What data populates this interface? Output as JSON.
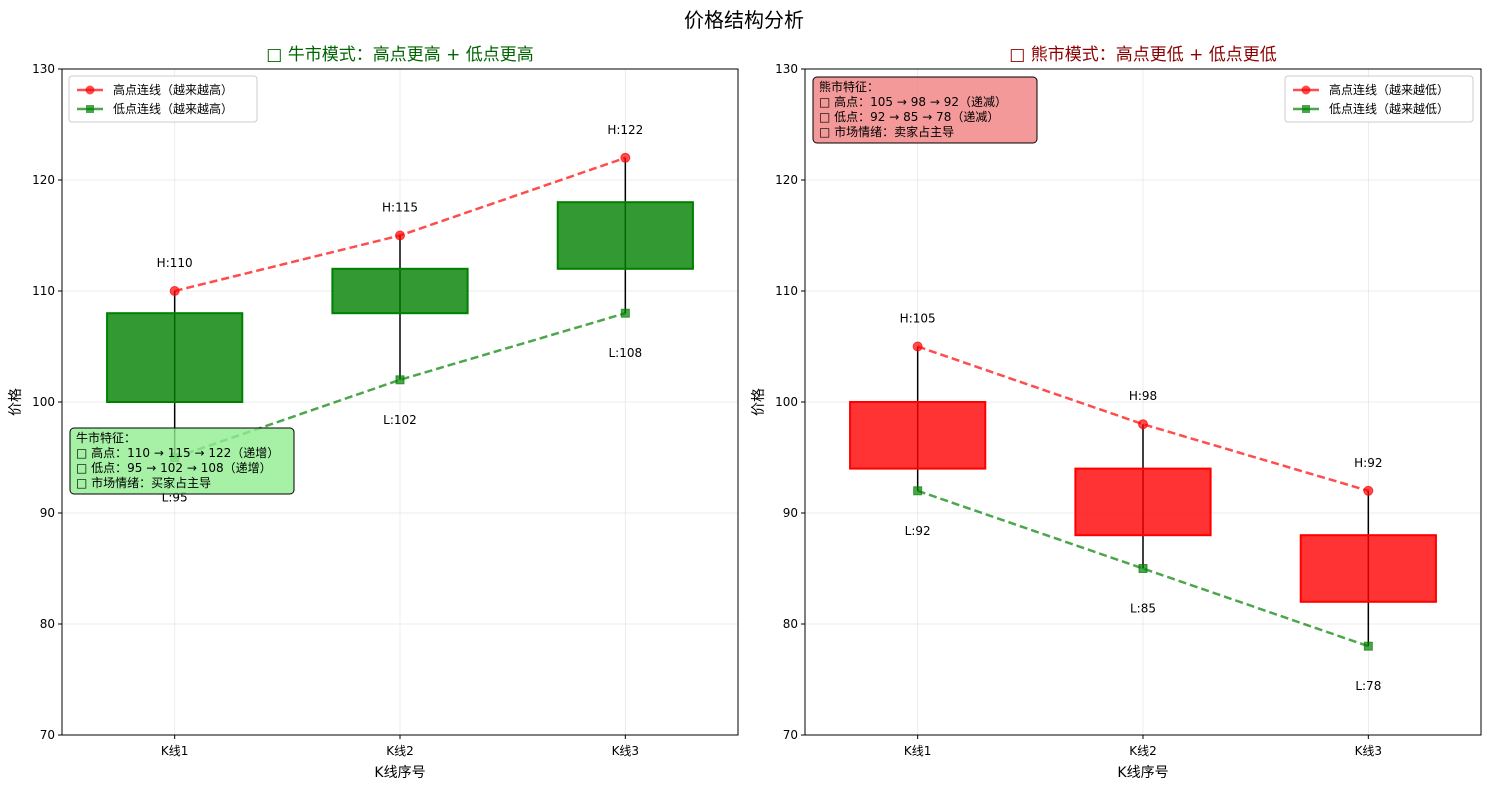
{
  "suptitle": "价格结构分析",
  "chart_data": [
    {
      "type": "candlestick",
      "title": "□ 牛市模式：高点更高 + 低点更高",
      "title_color": "#006400",
      "xlabel": "K线序号",
      "ylabel": "价格",
      "ylim": [
        70,
        130
      ],
      "yticks": [
        70,
        80,
        90,
        100,
        110,
        120,
        130
      ],
      "grid": true,
      "categories": [
        "K线1",
        "K线2",
        "K线3"
      ],
      "candles": [
        {
          "open": 100,
          "close": 108,
          "high": 110,
          "low": 95
        },
        {
          "open": 108,
          "close": 112,
          "high": 115,
          "low": 102
        },
        {
          "open": 112,
          "close": 118,
          "high": 122,
          "low": 108
        }
      ],
      "candle_color": "#008000",
      "high_labels": [
        "H:110",
        "H:115",
        "H:122"
      ],
      "low_labels": [
        "L:95",
        "L:102",
        "L:108"
      ],
      "series": [
        {
          "name": "高点连线（越来越高）",
          "values": [
            110,
            115,
            122
          ],
          "color": "#ff0000",
          "marker": "circle"
        },
        {
          "name": "低点连线（越来越高）",
          "values": [
            95,
            102,
            108
          ],
          "color": "#008000",
          "marker": "square"
        }
      ],
      "legend_position": "upper-left",
      "info_box": {
        "position": "lower-left",
        "bg": "#90ee90",
        "lines": [
          "牛市特征：",
          "□ 高点：110 → 115 → 122（递增）",
          "□ 低点：95 → 102 → 108（递增）",
          "□ 市场情绪：买家占主导"
        ]
      }
    },
    {
      "type": "candlestick",
      "title": "□ 熊市模式：高点更低 + 低点更低",
      "title_color": "#8b0000",
      "xlabel": "K线序号",
      "ylabel": "价格",
      "ylim": [
        70,
        130
      ],
      "yticks": [
        70,
        80,
        90,
        100,
        110,
        120,
        130
      ],
      "grid": true,
      "categories": [
        "K线1",
        "K线2",
        "K线3"
      ],
      "candles": [
        {
          "open": 100,
          "close": 94,
          "high": 105,
          "low": 92
        },
        {
          "open": 94,
          "close": 88,
          "high": 98,
          "low": 85
        },
        {
          "open": 88,
          "close": 82,
          "high": 92,
          "low": 78
        }
      ],
      "candle_color": "#ff0000",
      "high_labels": [
        "H:105",
        "H:98",
        "H:92"
      ],
      "low_labels": [
        "L:92",
        "L:85",
        "L:78"
      ],
      "series": [
        {
          "name": "高点连线（越来越低）",
          "values": [
            105,
            98,
            92
          ],
          "color": "#ff0000",
          "marker": "circle"
        },
        {
          "name": "低点连线（越来越低）",
          "values": [
            92,
            85,
            78
          ],
          "color": "#008000",
          "marker": "square"
        }
      ],
      "legend_position": "upper-right",
      "info_box": {
        "position": "upper-left",
        "bg": "#f08080",
        "lines": [
          "熊市特征：",
          "□ 高点：105 → 98 → 92（递减）",
          "□ 低点：92 → 85 → 78（递减）",
          "□ 市场情绪：卖家占主导"
        ]
      }
    }
  ]
}
